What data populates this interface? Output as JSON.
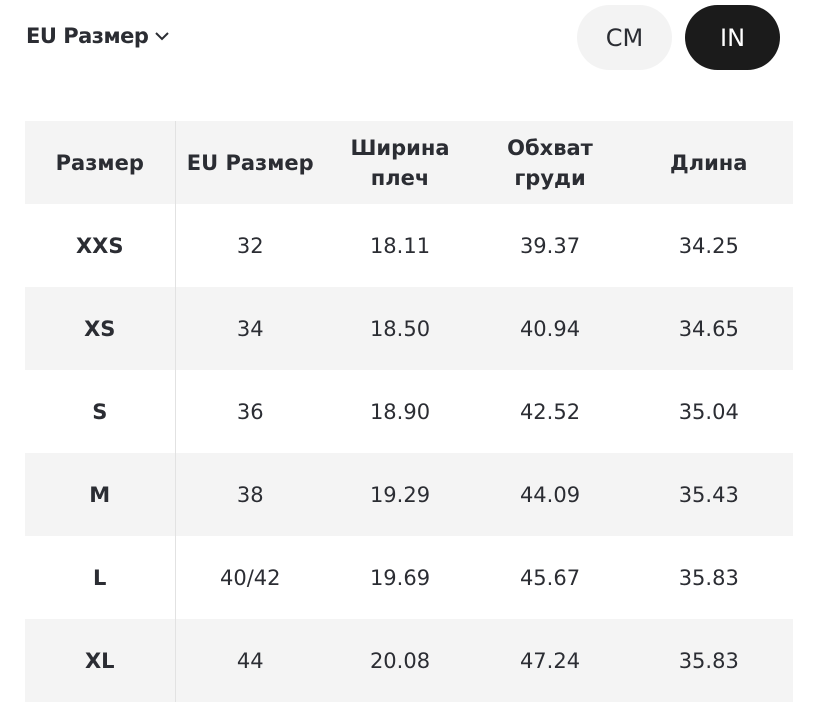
{
  "size_selector": {
    "label": "EU Размер",
    "icon": "chevron-down-icon"
  },
  "units": {
    "options": [
      "CM",
      "IN"
    ],
    "selected": "IN"
  },
  "table": {
    "headers": [
      "Размер",
      "EU Размер",
      "Ширина плеч",
      "Обхват груди",
      "Длина"
    ],
    "rows": [
      [
        "XXS",
        "32",
        "18.11",
        "39.37",
        "34.25"
      ],
      [
        "XS",
        "34",
        "18.50",
        "40.94",
        "34.65"
      ],
      [
        "S",
        "36",
        "18.90",
        "42.52",
        "35.04"
      ],
      [
        "M",
        "38",
        "19.29",
        "44.09",
        "35.43"
      ],
      [
        "L",
        "40/42",
        "19.69",
        "45.67",
        "35.83"
      ],
      [
        "XL",
        "44",
        "20.08",
        "47.24",
        "35.83"
      ]
    ]
  }
}
